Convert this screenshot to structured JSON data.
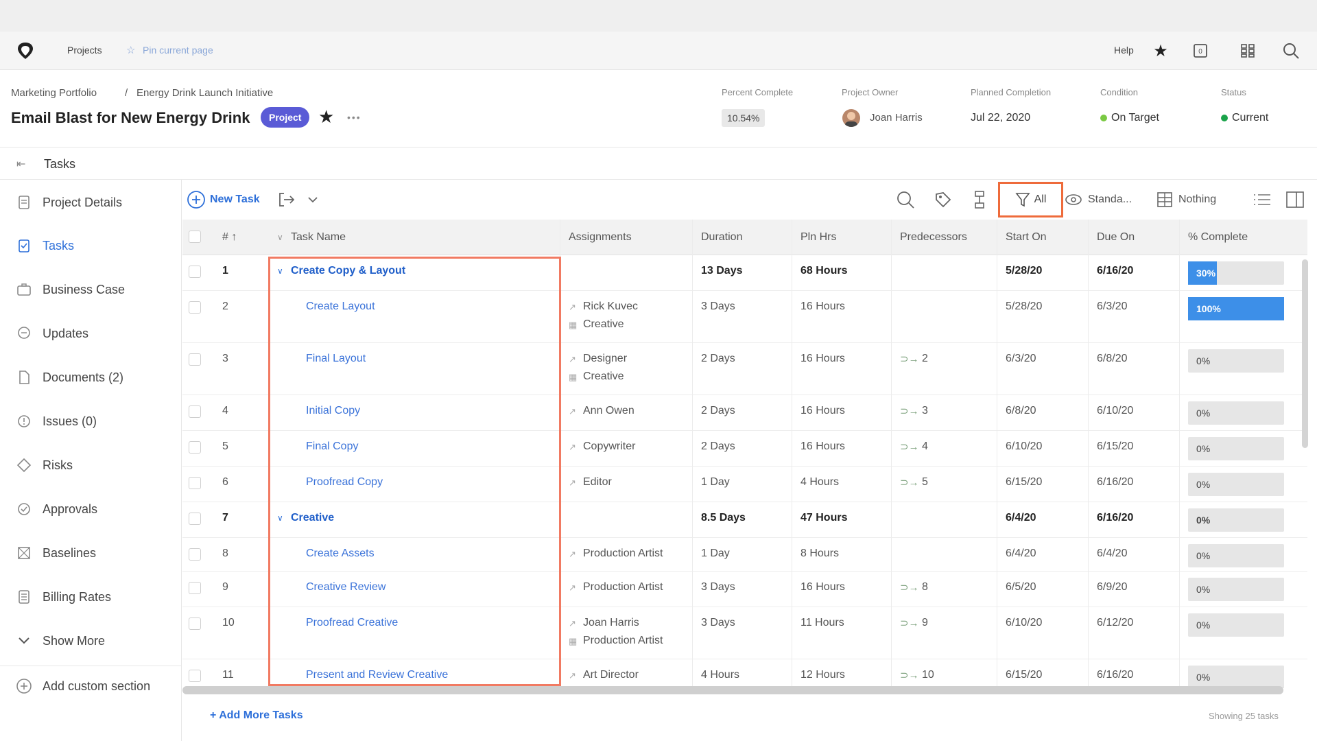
{
  "nav": {
    "projects": "Projects",
    "pin": "Pin current page",
    "help": "Help"
  },
  "header": {
    "breadcrumb_parent": "Marketing Portfolio",
    "breadcrumb_sep": "/",
    "breadcrumb_current": "Energy Drink Launch Initiative",
    "title": "Email Blast for New Energy Drink",
    "type_badge": "Project",
    "more": "•••",
    "percent_complete_label": "Percent Complete",
    "percent_complete": "10.54%",
    "owner_label": "Project Owner",
    "owner": "Joan Harris",
    "planned_label": "Planned Completion",
    "planned": "Jul 22, 2020",
    "condition_label": "Condition",
    "condition": "On Target",
    "status_label": "Status",
    "status": "Current",
    "condition_color": "#7ac943",
    "status_color": "#1aa34a"
  },
  "tasks_bar": {
    "label": "Tasks"
  },
  "sidebar": {
    "items": [
      {
        "label": "Project Details"
      },
      {
        "label": "Tasks"
      },
      {
        "label": "Business Case"
      },
      {
        "label": "Updates"
      },
      {
        "label": "Documents (2)"
      },
      {
        "label": "Issues (0)"
      },
      {
        "label": "Risks"
      },
      {
        "label": "Approvals"
      },
      {
        "label": "Baselines"
      },
      {
        "label": "Billing Rates"
      },
      {
        "label": "Show More"
      },
      {
        "label": "Add custom section"
      }
    ]
  },
  "toolbar": {
    "new_task": "New Task",
    "filter": "All",
    "view": "Standa...",
    "grouping": "Nothing"
  },
  "grid": {
    "columns": [
      "# ↑",
      "Task Name",
      "Assignments",
      "Duration",
      "Pln Hrs",
      "Predecessors",
      "Start On",
      "Due On",
      "% Complete"
    ],
    "rows": [
      {
        "num": "1",
        "name": "Create Copy & Layout",
        "parent": true,
        "assign1": "",
        "assign2": "",
        "duration": "13 Days",
        "hours": "68 Hours",
        "pred": "",
        "start": "5/28/20",
        "due": "6/16/20",
        "pct_label": "30%",
        "pct": 30
      },
      {
        "num": "2",
        "name": "Create Layout",
        "parent": false,
        "assign1": "Rick Kuvec",
        "assign2": "Creative",
        "duration": "3 Days",
        "hours": "16 Hours",
        "pred": "",
        "start": "5/28/20",
        "due": "6/3/20",
        "pct_label": "100%",
        "pct": 100
      },
      {
        "num": "3",
        "name": "Final Layout",
        "parent": false,
        "assign1": "Designer",
        "assign2": "Creative",
        "duration": "2 Days",
        "hours": "16 Hours",
        "pred": "2",
        "start": "6/3/20",
        "due": "6/8/20",
        "pct_label": "0%",
        "pct": 0
      },
      {
        "num": "4",
        "name": "Initial Copy",
        "parent": false,
        "assign1": "Ann Owen",
        "assign2": "",
        "duration": "2 Days",
        "hours": "16 Hours",
        "pred": "3",
        "start": "6/8/20",
        "due": "6/10/20",
        "pct_label": "0%",
        "pct": 0
      },
      {
        "num": "5",
        "name": "Final Copy",
        "parent": false,
        "assign1": "Copywriter",
        "assign2": "",
        "duration": "2 Days",
        "hours": "16 Hours",
        "pred": "4",
        "start": "6/10/20",
        "due": "6/15/20",
        "pct_label": "0%",
        "pct": 0
      },
      {
        "num": "6",
        "name": "Proofread Copy",
        "parent": false,
        "assign1": "Editor",
        "assign2": "",
        "duration": "1 Day",
        "hours": "4 Hours",
        "pred": "5",
        "start": "6/15/20",
        "due": "6/16/20",
        "pct_label": "0%",
        "pct": 0
      },
      {
        "num": "7",
        "name": "Creative",
        "parent": true,
        "assign1": "",
        "assign2": "",
        "duration": "8.5 Days",
        "hours": "47 Hours",
        "pred": "",
        "start": "6/4/20",
        "due": "6/16/20",
        "pct_label": "0%",
        "pct": 0
      },
      {
        "num": "8",
        "name": "Create Assets",
        "parent": false,
        "assign1": "Production Artist",
        "assign2": "",
        "duration": "1 Day",
        "hours": "8 Hours",
        "pred": "",
        "start": "6/4/20",
        "due": "6/4/20",
        "pct_label": "0%",
        "pct": 0
      },
      {
        "num": "9",
        "name": "Creative Review",
        "parent": false,
        "assign1": "Production Artist",
        "assign2": "",
        "duration": "3 Days",
        "hours": "16 Hours",
        "pred": "8",
        "start": "6/5/20",
        "due": "6/9/20",
        "pct_label": "0%",
        "pct": 0
      },
      {
        "num": "10",
        "name": "Proofread Creative",
        "parent": false,
        "assign1": "Joan Harris",
        "assign2": "Production Artist",
        "duration": "3 Days",
        "hours": "11 Hours",
        "pred": "9",
        "start": "6/10/20",
        "due": "6/12/20",
        "pct_label": "0%",
        "pct": 0
      },
      {
        "num": "11",
        "name": "Present and Review Creative",
        "parent": false,
        "assign1": "Art Director",
        "assign2": "",
        "duration": "4 Hours",
        "hours": "12 Hours",
        "pred": "10",
        "start": "6/15/20",
        "due": "6/16/20",
        "pct_label": "0%",
        "pct": 0
      }
    ]
  },
  "footer": {
    "add_more": "+ Add More Tasks",
    "showing": "Showing 25 tasks"
  },
  "colors": {
    "accent": "#2d6fd9",
    "highlight": "#ee6b3b",
    "badge": "#5a5bd6",
    "progress": "#3d8fe8"
  }
}
